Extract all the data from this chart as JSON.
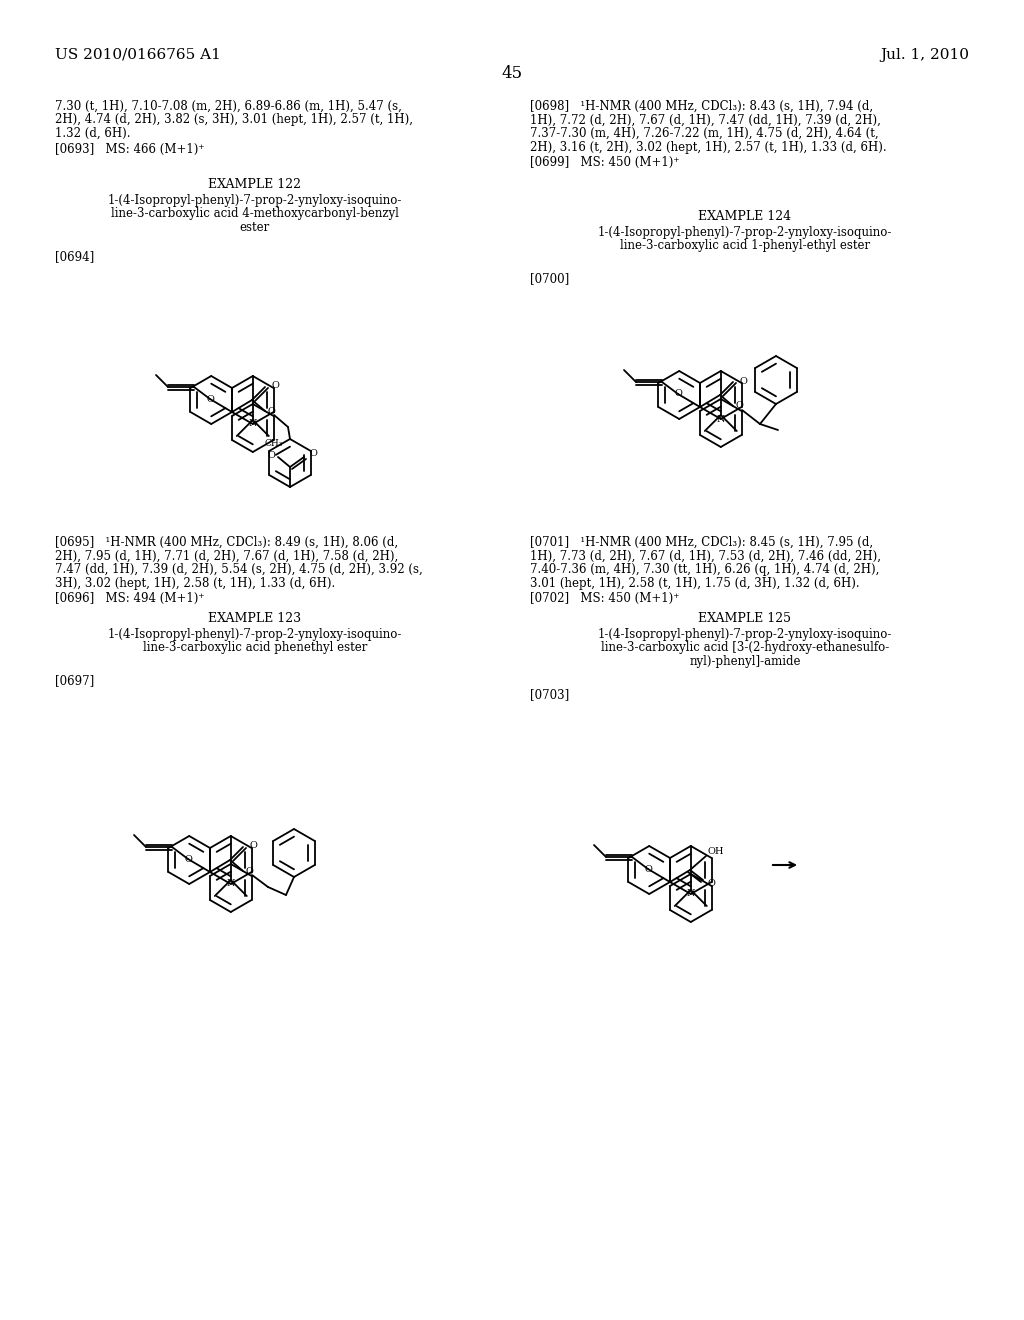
{
  "bg": "#ffffff",
  "header_left": "US 2010/0166765 A1",
  "header_right": "Jul. 1, 2010",
  "page_num": "45",
  "top_left_lines": [
    "7.30 (t, 1H), 7.10-7.08 (m, 2H), 6.89-6.86 (m, 1H), 5.47 (s,",
    "2H), 4.74 (d, 2H), 3.82 (s, 3H), 3.01 (hept, 1H), 2.57 (t, 1H),",
    "1.32 (d, 6H)."
  ],
  "ref0693": "[0693]   MS: 466 (M+1)⁺",
  "top_right_lines": [
    "[0698]   ¹H-NMR (400 MHz, CDCl₃): 8.43 (s, 1H), 7.94 (d,",
    "1H), 7.72 (d, 2H), 7.67 (d, 1H), 7.47 (dd, 1H), 7.39 (d, 2H),",
    "7.37-7.30 (m, 4H), 7.26-7.22 (m, 1H), 4.75 (d, 2H), 4.64 (t,",
    "2H), 3.16 (t, 2H), 3.02 (hept, 1H), 2.57 (t, 1H), 1.33 (d, 6H)."
  ],
  "ref0699": "[0699]   MS: 450 (M+1)⁺",
  "ex122_head": "EXAMPLE 122",
  "ex122_title": [
    "1-(4-Isopropyl-phenyl)-7-prop-2-ynyloxy-isoquino-",
    "line-3-carboxylic acid 4-methoxycarbonyl-benzyl",
    "ester"
  ],
  "ref0694": "[0694]",
  "ex122_nmr": [
    "[0695]   ¹H-NMR (400 MHz, CDCl₃): 8.49 (s, 1H), 8.06 (d,",
    "2H), 7.95 (d, 1H), 7.71 (d, 2H), 7.67 (d, 1H), 7.58 (d, 2H),",
    "7.47 (dd, 1H), 7.39 (d, 2H), 5.54 (s, 2H), 4.75 (d, 2H), 3.92 (s,",
    "3H), 3.02 (hept, 1H), 2.58 (t, 1H), 1.33 (d, 6H)."
  ],
  "ref0696": "[0696]   MS: 494 (M+1)⁺",
  "ex123_head": "EXAMPLE 123",
  "ex123_title": [
    "1-(4-Isopropyl-phenyl)-7-prop-2-ynyloxy-isoquino-",
    "line-3-carboxylic acid phenethyl ester"
  ],
  "ref0697": "[0697]",
  "ex124_head": "EXAMPLE 124",
  "ex124_title": [
    "1-(4-Isopropyl-phenyl)-7-prop-2-ynyloxy-isoquino-",
    "line-3-carboxylic acid 1-phenyl-ethyl ester"
  ],
  "ref0700": "[0700]",
  "ex124_nmr": [
    "[0701]   ¹H-NMR (400 MHz, CDCl₃): 8.45 (s, 1H), 7.95 (d,",
    "1H), 7.73 (d, 2H), 7.67 (d, 1H), 7.53 (d, 2H), 7.46 (dd, 2H),",
    "7.40-7.36 (m, 4H), 7.30 (tt, 1H), 6.26 (q, 1H), 4.74 (d, 2H),",
    "3.01 (hept, 1H), 2.58 (t, 1H), 1.75 (d, 3H), 1.32 (d, 6H)."
  ],
  "ref0702": "[0702]   MS: 450 (M+1)⁺",
  "ex125_head": "EXAMPLE 125",
  "ex125_title": [
    "1-(4-Isopropyl-phenyl)-7-prop-2-ynyloxy-isoquino-",
    "line-3-carboxylic acid [3-(2-hydroxy-ethanesulfo-",
    "nyl)-phenyl]-amide"
  ],
  "ref0703": "[0703]"
}
